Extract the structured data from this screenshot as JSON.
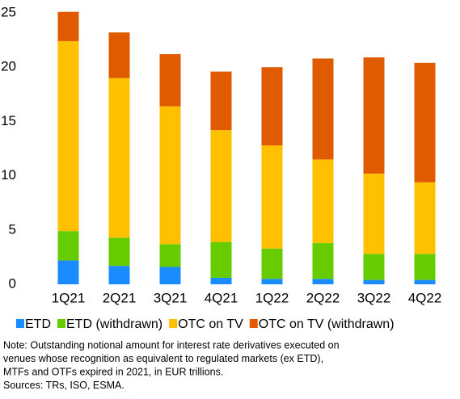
{
  "chart_data": {
    "type": "stacked_bar",
    "categories": [
      "1Q21",
      "2Q21",
      "3Q21",
      "4Q21",
      "1Q22",
      "2Q22",
      "3Q22",
      "4Q22"
    ],
    "series": [
      {
        "name": "ETD",
        "color": "#1a8cff",
        "values": [
          2.2,
          1.7,
          1.6,
          0.6,
          0.5,
          0.5,
          0.4,
          0.4
        ]
      },
      {
        "name": "ETD (withdrawn)",
        "color": "#66cc00",
        "values": [
          2.7,
          2.6,
          2.1,
          3.3,
          2.8,
          3.3,
          2.4,
          2.4
        ]
      },
      {
        "name": "OTC on TV",
        "color": "#ffc000",
        "values": [
          17.5,
          14.7,
          12.7,
          10.3,
          9.5,
          7.7,
          7.4,
          6.6
        ]
      },
      {
        "name": "OTC on TV (withdrawn)",
        "color": "#e05a00",
        "values": [
          2.7,
          4.2,
          4.8,
          5.4,
          7.2,
          9.3,
          10.7,
          11.0
        ]
      }
    ],
    "ylim": [
      0,
      25
    ],
    "yticks": [
      0,
      5,
      10,
      15,
      20,
      25
    ],
    "grid": false,
    "legend": "bottom",
    "notes": [
      "Note: Outstanding notional amount for interest rate derivatives executed on",
      "venues whose recognition as equivalent to regulated markets (ex ETD),",
      "MTFs and OTFs expired in 2021, in EUR trillions.",
      "Sources: TRs, ISO, ESMA."
    ]
  }
}
